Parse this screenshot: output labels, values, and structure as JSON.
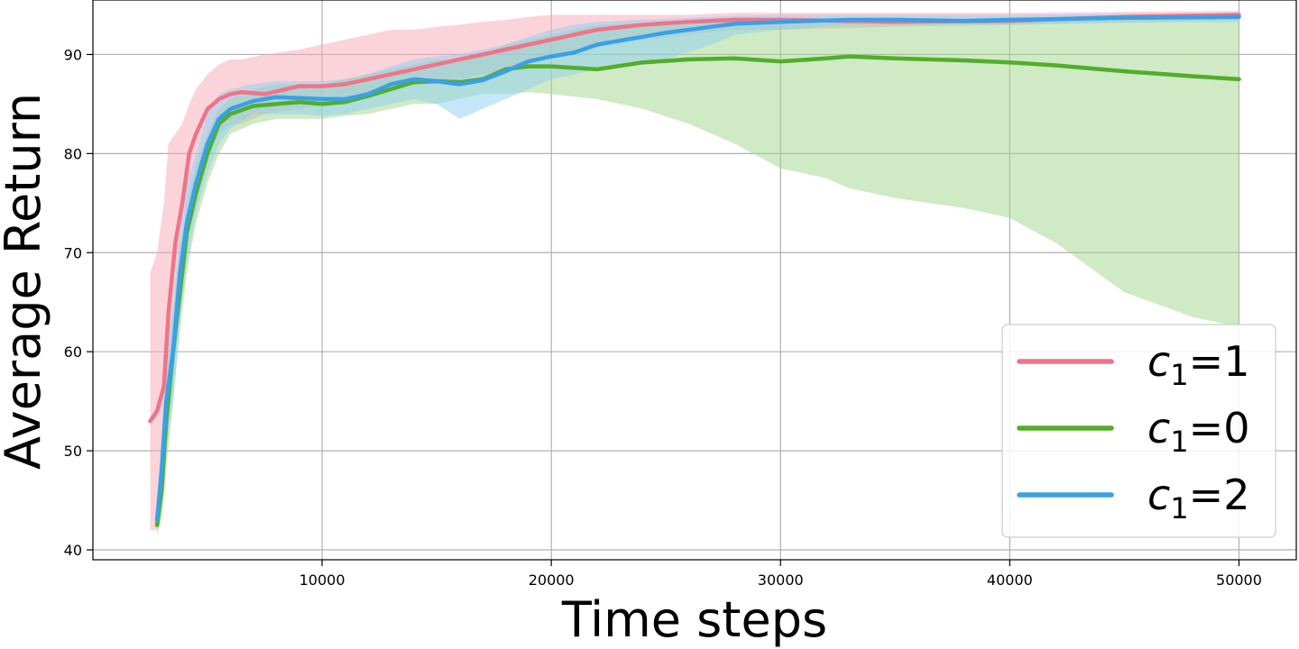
{
  "chart_data": {
    "type": "line",
    "title": "",
    "xlabel": "Time steps",
    "ylabel": "Average Return",
    "xlim": [
      2,
      52500
    ],
    "ylim": [
      39,
      95.5
    ],
    "xticks": [
      10000,
      20000,
      30000,
      40000,
      50000
    ],
    "yticks": [
      40,
      50,
      60,
      70,
      80,
      90
    ],
    "grid": true,
    "legend_position": "lower-right",
    "series": [
      {
        "name": "c1=1",
        "legend_var": "c",
        "legend_sub": "1",
        "legend_rest": "=1",
        "color": "#f07488",
        "fill_color": "#f7a8b5",
        "x": [
          2500,
          2800,
          3100,
          3300,
          3600,
          3900,
          4200,
          4500,
          5000,
          5500,
          6000,
          6500,
          7500,
          9000,
          10000,
          11000,
          12000,
          13000,
          14000,
          15000,
          16000,
          17000,
          18000,
          19000,
          20000,
          22000,
          24000,
          26000,
          28000,
          30000,
          35000,
          40000,
          45000,
          50000
        ],
        "y": [
          53,
          54,
          56.5,
          64,
          71,
          75,
          80,
          82,
          84.5,
          85.5,
          86,
          86.2,
          86,
          86.8,
          86.8,
          87,
          87.5,
          88,
          88.5,
          89,
          89.5,
          90,
          90.5,
          91,
          91.5,
          92.5,
          93,
          93.3,
          93.5,
          93.5,
          93.3,
          93.4,
          93.8,
          94
        ],
        "lower": [
          42,
          42,
          46,
          54,
          64,
          70,
          75,
          78,
          80,
          82,
          83,
          83,
          84,
          84.5,
          85,
          85.5,
          86,
          86.5,
          87,
          87,
          87.5,
          88,
          88.5,
          89,
          89.5,
          91,
          91.5,
          92,
          92.5,
          92.5,
          92.8,
          93,
          93.3,
          93.5
        ],
        "upper": [
          68,
          70,
          75,
          81,
          82,
          83,
          85,
          86.5,
          88,
          89,
          89.5,
          89.5,
          90,
          90.5,
          91,
          91.5,
          92,
          92.5,
          92.5,
          92.8,
          93,
          93.3,
          93.5,
          93.8,
          94,
          94,
          94,
          94,
          94.2,
          94.2,
          94.2,
          94.2,
          94.3,
          94.4
        ]
      },
      {
        "name": "c1=0",
        "legend_var": "c",
        "legend_sub": "1",
        "legend_rest": "=0",
        "color": "#52ad2b",
        "fill_color": "#9fd68a",
        "x": [
          2800,
          3000,
          3200,
          3500,
          3800,
          4100,
          4500,
          5000,
          5500,
          6000,
          7000,
          8000,
          9000,
          10000,
          11000,
          12000,
          13000,
          14000,
          15000,
          16000,
          17000,
          18000,
          19000,
          20000,
          22000,
          24000,
          26000,
          28000,
          30000,
          32000,
          33000,
          35000,
          38000,
          40000,
          42000,
          45000,
          48000,
          50000
        ],
        "y": [
          42.5,
          46,
          53,
          60,
          66,
          72,
          76,
          80,
          83,
          84,
          84.8,
          85,
          85.2,
          85,
          85.2,
          85.8,
          86.5,
          87.2,
          87.3,
          87.2,
          87.5,
          88.5,
          88.8,
          88.8,
          88.5,
          89.2,
          89.5,
          89.6,
          89.3,
          89.6,
          89.8,
          89.6,
          89.4,
          89.2,
          88.9,
          88.3,
          87.8,
          87.5
        ],
        "lower": [
          41.5,
          43,
          48,
          55,
          62,
          68,
          73,
          77,
          80,
          82,
          83,
          83.5,
          83.5,
          83.5,
          83.8,
          84,
          84.5,
          85,
          85,
          85.5,
          86,
          86,
          86.2,
          86,
          85.5,
          84.5,
          83,
          81,
          78.5,
          77.5,
          76.5,
          75.5,
          74.5,
          73.5,
          71,
          66,
          63.5,
          62.5
        ],
        "upper": [
          44,
          49,
          57,
          64,
          70,
          75,
          79,
          82,
          84.5,
          85.5,
          86.5,
          87,
          87,
          87,
          87.5,
          88,
          88.5,
          89,
          89.5,
          89.5,
          90,
          91,
          91.5,
          92,
          93,
          93.2,
          93.3,
          93.4,
          93.5,
          93.5,
          93.5,
          93.5,
          93.5,
          93.5,
          93.5,
          93.6,
          93.7,
          93.8
        ]
      },
      {
        "name": "c1=2",
        "legend_var": "c",
        "legend_sub": "1",
        "legend_rest": "=2",
        "color": "#3aa0e6",
        "fill_color": "#8ed0f4",
        "x": [
          2800,
          3000,
          3200,
          3500,
          3800,
          4100,
          4500,
          5000,
          5500,
          6000,
          7000,
          8000,
          9000,
          10000,
          11000,
          12000,
          13000,
          14000,
          15000,
          16000,
          17000,
          18000,
          19000,
          20000,
          21000,
          22000,
          24000,
          25000,
          27000,
          28000,
          30000,
          33000,
          35000,
          38000,
          40000,
          45000,
          50000
        ],
        "y": [
          43,
          48,
          55,
          60,
          68,
          73,
          77,
          81,
          83.5,
          84.5,
          85.3,
          85.7,
          85.6,
          85.5,
          85.5,
          86,
          87,
          87.5,
          87.3,
          87,
          87.4,
          88.3,
          89.3,
          89.8,
          90.2,
          91,
          91.8,
          92.2,
          92.8,
          93.1,
          93.3,
          93.5,
          93.5,
          93.4,
          93.5,
          93.7,
          93.8
        ],
        "lower": [
          42,
          44,
          50,
          55,
          63,
          69,
          74,
          78,
          81,
          82.5,
          84,
          84,
          84,
          83.8,
          84,
          84.5,
          85,
          85.5,
          85,
          83.5,
          84.5,
          85.5,
          86.5,
          87.5,
          88,
          88.5,
          89,
          89.5,
          91,
          92,
          92.5,
          93,
          93,
          93,
          93,
          93.2,
          93.3
        ],
        "upper": [
          45,
          52,
          60,
          65,
          72,
          77,
          80,
          84,
          86,
          86.5,
          87,
          87.3,
          87.3,
          87.3,
          87.5,
          88,
          88.8,
          89.5,
          89.8,
          90,
          90.5,
          91,
          91.8,
          92.5,
          93,
          93.3,
          93.5,
          93.6,
          93.8,
          93.9,
          94,
          94,
          94,
          94,
          94,
          94.1,
          94.2
        ]
      }
    ]
  }
}
